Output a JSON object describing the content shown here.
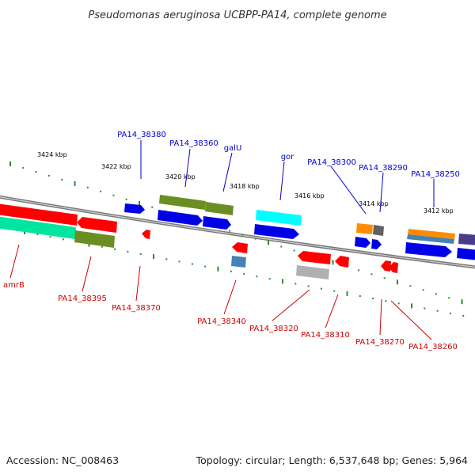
{
  "title": "Pseudomonas aeruginosa UCBPP-PA14, complete genome",
  "accession": "Accession: NC_008463",
  "topology": "Topology: circular; Length: 6,537,648 bp; Genes: 5,964",
  "scale_labels": [
    "3424 kbp",
    "3422 kbp",
    "3420 kbp",
    "3418 kbp",
    "3416 kbp",
    "3414 kbp",
    "3412 kbp"
  ],
  "gene_labels_top": [
    "PA14_38380",
    "PA14_38360",
    "galU",
    "gor",
    "PA14_38300",
    "PA14_38290",
    "PA14_38250"
  ],
  "gene_labels_bottom": [
    "amrB",
    "PA14_38395",
    "PA14_38370",
    "PA14_38340",
    "PA14_38320",
    "PA14_38310",
    "PA14_38270",
    "PA14_38260"
  ],
  "colors": {
    "forward_label": "#0000cc",
    "reverse_label": "#cc0000",
    "blue": "#0000e6",
    "red": "#ff0000",
    "olive": "#6b8e23",
    "cyan": "#00ffff",
    "orange": "#ff8c00",
    "steel": "#4682b4",
    "teal": "#00e5a0",
    "gray": "#b0b0b0",
    "darkgray": "#606060",
    "slate": "#483d8b",
    "tick": "#2e8b2e",
    "backbone": "#888888"
  }
}
